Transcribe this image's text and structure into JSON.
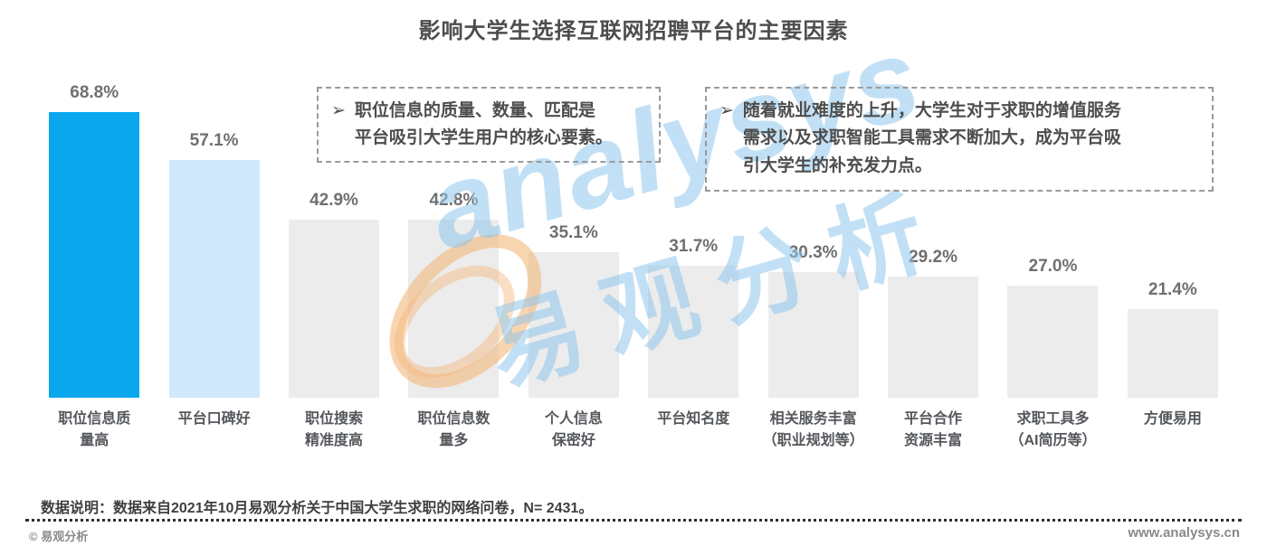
{
  "page": {
    "title": "影响大学生选择互联网招聘平台的主要因素"
  },
  "chart_data": {
    "type": "bar",
    "title": "影响大学生选择互联网招聘平台的主要因素",
    "categories": [
      "职位信息质量高",
      "平台口碑好",
      "职位搜索精准度高",
      "职位信息数量多",
      "个人信息保密好",
      "平台知名度",
      "相关服务丰富（职业规划等）",
      "平台合作资源丰富",
      "求职工具多（AI简历等）",
      "方便易用"
    ],
    "categories_display": [
      "职位信息质\n量高",
      "平台口碑好",
      "职位搜索\n精准度高",
      "职位信息数\n量多",
      "个人信息\n保密好",
      "平台知名度",
      "相关服务丰富\n（职业规划等）",
      "平台合作\n资源丰富",
      "求职工具多\n（AI简历等）",
      "方便易用"
    ],
    "values": [
      68.8,
      57.1,
      42.9,
      42.8,
      35.1,
      31.7,
      30.3,
      29.2,
      27.0,
      21.4
    ],
    "value_labels": [
      "68.8%",
      "57.1%",
      "42.9%",
      "42.8%",
      "35.1%",
      "31.7%",
      "30.3%",
      "29.2%",
      "27.0%",
      "21.4%"
    ],
    "xlabel": "",
    "ylabel": "",
    "ylim": [
      0,
      75
    ],
    "grid": false,
    "legend": false,
    "bar_colors": {
      "highlight": "#0aa7ef",
      "secondary": "#cfe9fa",
      "default": "#ececec"
    }
  },
  "annotations": [
    {
      "arrow": "➢",
      "text": "职位信息的质量、数量、匹配是\n平台吸引大学生用户的核心要素。"
    },
    {
      "arrow": "➢",
      "text": "随着就业难度的上升，大学生对于求职的增值服务\n需求以及求职智能工具需求不断加大，成为平台吸\n引大学生的补充发力点。"
    }
  ],
  "watermark": {
    "en": "analysys",
    "cn": "易观分析"
  },
  "footer": {
    "note": "数据说明：数据来自2021年10月易观分析关于中国大学生求职的网络问卷，N= 2431。",
    "copyright": "© 易观分析",
    "website": "www.analysys.cn"
  }
}
